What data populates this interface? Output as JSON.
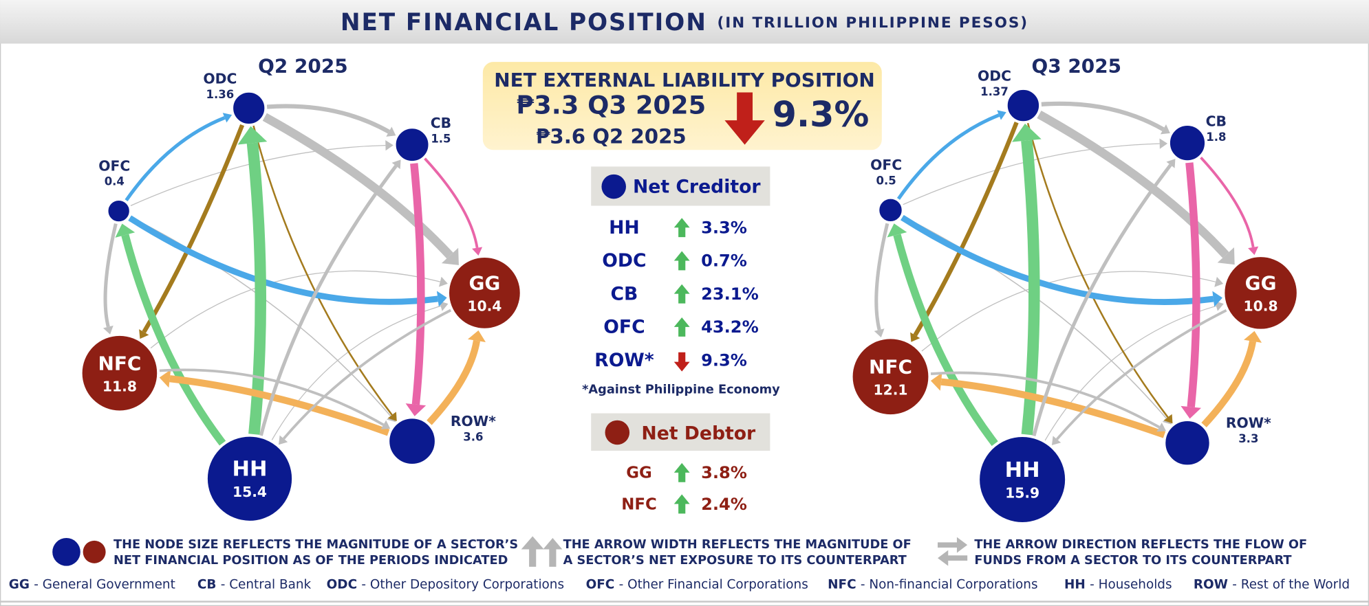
{
  "header": {
    "title": "NET FINANCIAL POSITION",
    "subtitle": "(IN TRILLION PHILIPPINE PESOS)"
  },
  "diagrams": [
    {
      "period": "Q2 2025",
      "nodes": [
        {
          "label": "ODC",
          "value": 1.36,
          "color": "#0b1a8f"
        },
        {
          "label": "CB",
          "value": 1.5,
          "color": "#0b1a8f"
        },
        {
          "label": "OFC",
          "value": 0.4,
          "color": "#0b1a8f"
        },
        {
          "label": "GG",
          "value": 10.4,
          "color": "#8e1f14"
        },
        {
          "label": "NFC",
          "value": 11.8,
          "color": "#8e1f14"
        },
        {
          "label": "HH",
          "value": 15.4,
          "color": "#0b1a8f"
        },
        {
          "label": "ROW*",
          "value": 3.6,
          "color": "#0b1a8f"
        }
      ]
    },
    {
      "period": "Q3 2025",
      "nodes": [
        {
          "label": "ODC",
          "value": 1.37,
          "color": "#0b1a8f"
        },
        {
          "label": "CB",
          "value": 1.8,
          "color": "#0b1a8f"
        },
        {
          "label": "OFC",
          "value": 0.5,
          "color": "#0b1a8f"
        },
        {
          "label": "GG",
          "value": 10.8,
          "color": "#8e1f14"
        },
        {
          "label": "NFC",
          "value": 12.1,
          "color": "#8e1f14"
        },
        {
          "label": "HH",
          "value": 15.9,
          "color": "#0b1a8f"
        },
        {
          "label": "ROW*",
          "value": 3.3,
          "color": "#0b1a8f"
        }
      ]
    }
  ],
  "summary": {
    "title": "NET EXTERNAL LIABILITY POSITION",
    "current": "₱3.3 Q3 2025",
    "previous": "₱3.6 Q2 2025",
    "change": "9.3%"
  },
  "net_creditor": {
    "title": "Net Creditor",
    "rows": [
      {
        "sector": "HH",
        "change": "3.3%",
        "direction": "up"
      },
      {
        "sector": "ODC",
        "change": "0.7%",
        "direction": "up"
      },
      {
        "sector": "CB",
        "change": "23.1%",
        "direction": "up"
      },
      {
        "sector": "OFC",
        "change": "43.2%",
        "direction": "up"
      },
      {
        "sector": "ROW*",
        "change": "9.3%",
        "direction": "down"
      }
    ],
    "note": "*Against Philippine Economy"
  },
  "net_debtor": {
    "title": "Net Debtor",
    "rows": [
      {
        "sector": "GG",
        "change": "3.8%",
        "direction": "up"
      },
      {
        "sector": "NFC",
        "change": "2.4%",
        "direction": "up"
      }
    ]
  },
  "legend": [
    {
      "lines": [
        "THE NODE SIZE REFLECTS THE MAGNITUDE OF A SECTOR’S",
        "NET FINANCIAL POSITION AS OF THE PERIODS INDICATED"
      ]
    },
    {
      "lines": [
        "THE ARROW WIDTH REFLECTS THE MAGNITUDE OF",
        "A SECTOR’S NET EXPOSURE TO ITS COUNTERPART"
      ]
    },
    {
      "lines": [
        "THE ARROW DIRECTION REFLECTS THE FLOW OF",
        "FUNDS FROM A SECTOR TO ITS COUNTERPART"
      ]
    }
  ],
  "glossary": [
    {
      "abbr": "GG",
      "name": "- General Government"
    },
    {
      "abbr": "CB",
      "name": "- Central Bank"
    },
    {
      "abbr": "ODC",
      "name": "- Other Depository Corporations"
    },
    {
      "abbr": "OFC",
      "name": "- Other Financial Corporations"
    },
    {
      "abbr": "NFC",
      "name": "- Non-financial Corporations"
    },
    {
      "abbr": "HH",
      "name": "- Households"
    },
    {
      "abbr": "ROW",
      "name": "- Rest of the World"
    }
  ]
}
